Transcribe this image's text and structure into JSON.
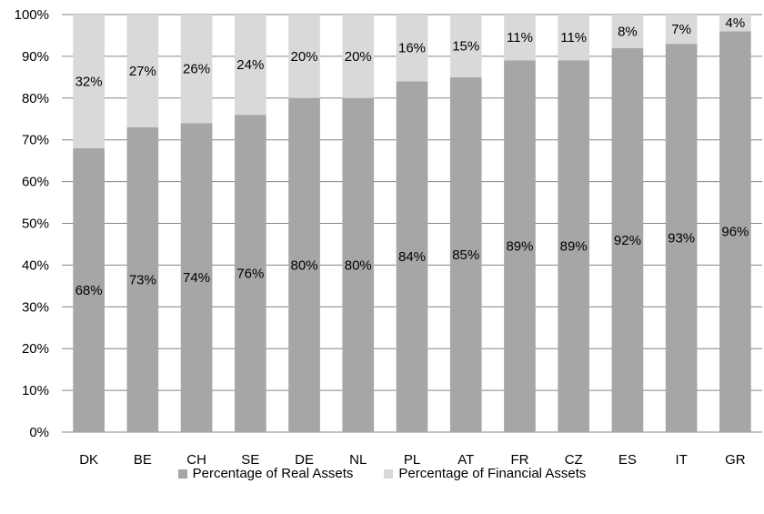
{
  "chart_data": {
    "type": "bar",
    "stacked": true,
    "categories": [
      "DK",
      "BE",
      "CH",
      "SE",
      "DE",
      "NL",
      "PL",
      "AT",
      "FR",
      "CZ",
      "ES",
      "IT",
      "GR"
    ],
    "series": [
      {
        "name": "Percentage of Real Assets",
        "color": "#a6a6a6",
        "values": [
          68,
          73,
          74,
          76,
          80,
          80,
          84,
          85,
          89,
          89,
          92,
          93,
          96
        ],
        "labels": [
          "68%",
          "73%",
          "74%",
          "76%",
          "80%",
          "80%",
          "84%",
          "85%",
          "89%",
          "89%",
          "92%",
          "93%",
          "96%"
        ]
      },
      {
        "name": "Percentage of Financial Assets",
        "color": "#d9d9d9",
        "values": [
          32,
          27,
          26,
          24,
          20,
          20,
          16,
          15,
          11,
          11,
          8,
          7,
          4
        ],
        "labels": [
          "32%",
          "27%",
          "26%",
          "24%",
          "20%",
          "20%",
          "16%",
          "15%",
          "11%",
          "11%",
          "8%",
          "7%",
          "4%"
        ]
      }
    ],
    "ylim": [
      0,
      100
    ],
    "yticks": [
      "0%",
      "10%",
      "20%",
      "30%",
      "40%",
      "50%",
      "60%",
      "70%",
      "80%",
      "90%",
      "100%"
    ],
    "grid": true,
    "legend_position": "bottom"
  }
}
